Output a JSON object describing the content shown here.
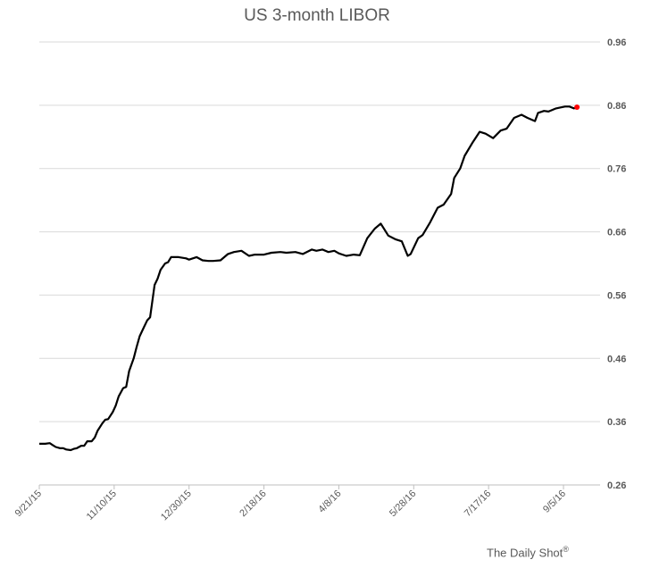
{
  "chart_data": {
    "type": "line",
    "title": "US 3-month LIBOR",
    "credit": "The Daily Shot",
    "credit_mark": "®",
    "xlabel": "",
    "ylabel": "",
    "ylim": [
      0.26,
      0.96
    ],
    "yticks": [
      "0.96",
      "0.86",
      "0.76",
      "0.66",
      "0.56",
      "0.46",
      "0.36",
      "0.26"
    ],
    "xticks": [
      "9/21/15",
      "11/10/15",
      "12/30/15",
      "2/18/16",
      "4/8/16",
      "5/28/16",
      "7/17/16",
      "9/5/16"
    ],
    "grid": true,
    "last_point_color": "#ff0000",
    "line_color": "#000000",
    "series": [
      {
        "x": [
          "9/21/15",
          "9/23/15",
          "9/25/15",
          "9/28/15",
          "9/30/15",
          "10/2/15",
          "10/5/15",
          "10/7/15",
          "10/9/15",
          "10/12/15",
          "10/14/15",
          "10/16/15",
          "10/19/15",
          "10/21/15",
          "10/23/15",
          "10/26/15",
          "10/28/15",
          "10/30/15",
          "11/2/15",
          "11/4/15",
          "11/6/15",
          "11/9/15",
          "11/11/15",
          "11/13/15",
          "11/16/15",
          "11/18/15",
          "11/20/15",
          "11/23/15",
          "11/25/15",
          "11/27/15",
          "11/30/15",
          "12/2/15",
          "12/4/15",
          "12/7/15",
          "12/9/15",
          "12/11/15",
          "12/14/15",
          "12/16/15",
          "12/18/15",
          "12/21/15",
          "12/22/15",
          "12/23/15",
          "12/28/15",
          "12/30/15",
          "1/4/16",
          "1/8/16",
          "1/12/16",
          "1/15/16",
          "1/20/16",
          "1/25/16",
          "1/29/16",
          "2/3/16",
          "2/8/16",
          "2/12/16",
          "2/18/16",
          "2/23/16",
          "2/29/16",
          "3/4/16",
          "3/10/16",
          "3/15/16",
          "3/21/16",
          "3/24/16",
          "3/28/16",
          "4/1/16",
          "4/5/16",
          "4/8/16",
          "4/13/16",
          "4/18/16",
          "4/22/16",
          "4/27/16",
          "5/2/16",
          "5/6/16",
          "5/11/16",
          "5/16/16",
          "5/20/16",
          "5/24/16",
          "5/26/16",
          "5/31/16",
          "6/3/16",
          "6/8/16",
          "6/13/16",
          "6/17/16",
          "6/22/16",
          "6/24/16",
          "6/28/16",
          "7/1/16",
          "7/6/16",
          "7/11/16",
          "7/15/16",
          "7/20/16",
          "7/25/16",
          "7/29/16",
          "8/3/16",
          "8/8/16",
          "8/12/16",
          "8/17/16",
          "8/19/16",
          "8/23/16",
          "8/26/16",
          "8/31/16",
          "9/2/16",
          "9/6/16",
          "9/9/16",
          "9/12/16",
          "9/14/16"
        ],
        "values": [
          0.325,
          0.325,
          0.325,
          0.326,
          0.323,
          0.32,
          0.318,
          0.318,
          0.316,
          0.315,
          0.317,
          0.318,
          0.322,
          0.322,
          0.329,
          0.329,
          0.335,
          0.346,
          0.357,
          0.363,
          0.364,
          0.375,
          0.385,
          0.4,
          0.413,
          0.415,
          0.44,
          0.46,
          0.478,
          0.495,
          0.51,
          0.52,
          0.525,
          0.576,
          0.586,
          0.6,
          0.61,
          0.612,
          0.62,
          0.62,
          0.62,
          0.62,
          0.618,
          0.616,
          0.62,
          0.615,
          0.614,
          0.614,
          0.615,
          0.625,
          0.628,
          0.63,
          0.622,
          0.624,
          0.624,
          0.627,
          0.628,
          0.627,
          0.628,
          0.625,
          0.632,
          0.63,
          0.632,
          0.628,
          0.63,
          0.626,
          0.622,
          0.624,
          0.623,
          0.65,
          0.665,
          0.673,
          0.654,
          0.648,
          0.645,
          0.622,
          0.625,
          0.65,
          0.655,
          0.675,
          0.698,
          0.703,
          0.72,
          0.745,
          0.76,
          0.78,
          0.8,
          0.818,
          0.815,
          0.808,
          0.82,
          0.823,
          0.84,
          0.845,
          0.84,
          0.835,
          0.848,
          0.851,
          0.85,
          0.855,
          0.856,
          0.858,
          0.858,
          0.855,
          0.857
        ]
      }
    ]
  }
}
